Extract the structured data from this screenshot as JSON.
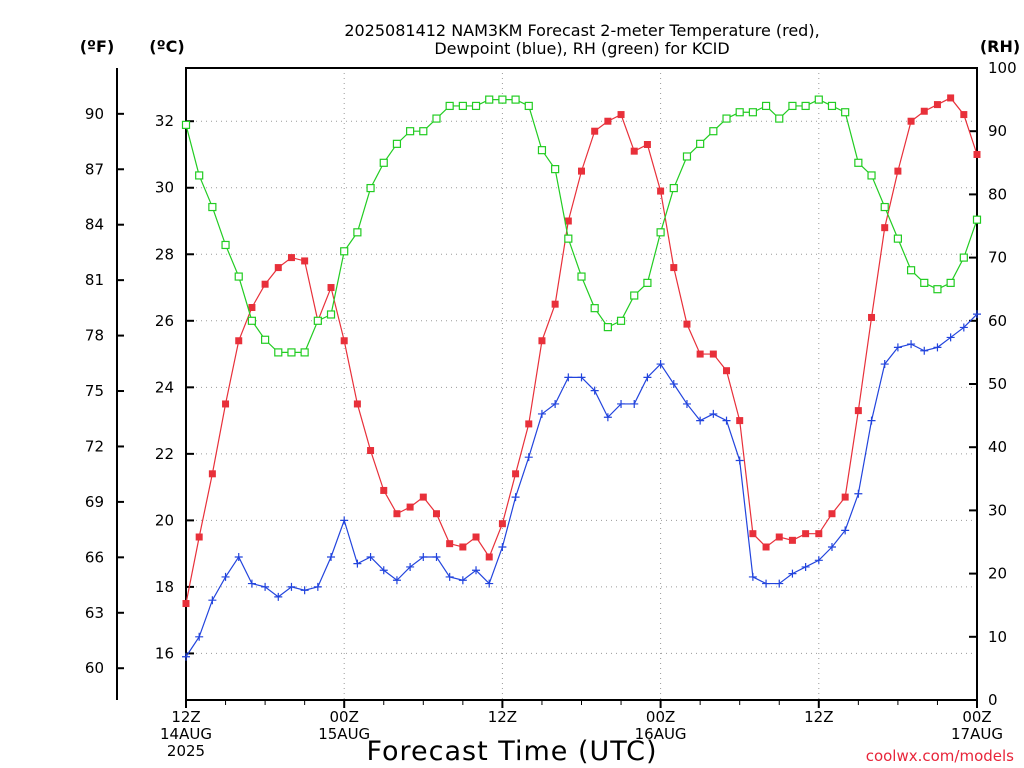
{
  "chart_data": {
    "type": "line",
    "title": [
      "2025081412 NAM3KM Forecast 2-meter Temperature (red),",
      "Dewpoint (blue), RH (green) for KCID"
    ],
    "xlabel": "Forecast Time (UTC)",
    "credit": "coolwx.com/models",
    "axis_units": {
      "fahrenheit": "(ºF)",
      "celsius": "(ºC)",
      "rh": "(RH)"
    },
    "x_hours": {
      "start": 0,
      "end": 60,
      "step": 1
    },
    "x_ticks": [
      {
        "hour": 0,
        "lines": [
          "12Z",
          "14AUG",
          "2025"
        ]
      },
      {
        "hour": 12,
        "lines": [
          "00Z",
          "15AUG"
        ]
      },
      {
        "hour": 24,
        "lines": [
          "12Z"
        ]
      },
      {
        "hour": 36,
        "lines": [
          "00Z",
          "16AUG"
        ]
      },
      {
        "hour": 48,
        "lines": [
          "12Z"
        ]
      },
      {
        "hour": 60,
        "lines": [
          "00Z",
          "17AUG"
        ]
      }
    ],
    "y_celsius": {
      "range": [
        14.6,
        33.6
      ],
      "ticks": [
        16,
        18,
        20,
        22,
        24,
        26,
        28,
        30,
        32
      ]
    },
    "y_fahrenheit": {
      "ticks": [
        60,
        63,
        66,
        69,
        72,
        75,
        78,
        81,
        84,
        87,
        90
      ]
    },
    "y_rh": {
      "range": [
        0,
        100
      ],
      "ticks": [
        0,
        10,
        20,
        30,
        40,
        50,
        60,
        70,
        80,
        90,
        100
      ]
    },
    "grid": true,
    "series": [
      {
        "name": "Temperature (red)",
        "axis": "celsius",
        "color": "#e8303a",
        "marker": "filled-square",
        "values": [
          17.5,
          19.5,
          21.4,
          23.5,
          25.4,
          26.4,
          27.1,
          27.6,
          27.9,
          27.8,
          26.0,
          27.0,
          25.4,
          23.5,
          22.1,
          20.9,
          20.2,
          20.4,
          20.7,
          20.2,
          19.3,
          19.2,
          19.5,
          18.9,
          19.9,
          21.4,
          22.9,
          25.4,
          26.5,
          29.0,
          30.5,
          31.7,
          32.0,
          32.2,
          31.1,
          31.3,
          29.9,
          27.6,
          25.9,
          25.0,
          25.0,
          24.5,
          23.0,
          19.6,
          19.2,
          19.5,
          19.4,
          19.6,
          19.6,
          20.2,
          20.7,
          23.3,
          26.1,
          28.8,
          30.5,
          32.0,
          32.3,
          32.5,
          32.7,
          32.2,
          31.0
        ]
      },
      {
        "name": "Dewpoint (blue)",
        "axis": "celsius",
        "color": "#2244dd",
        "marker": "plus",
        "values": [
          15.9,
          16.5,
          17.6,
          18.3,
          18.9,
          18.1,
          18.0,
          17.7,
          18.0,
          17.9,
          18.0,
          18.9,
          20.0,
          18.7,
          18.9,
          18.5,
          18.2,
          18.6,
          18.9,
          18.9,
          18.3,
          18.2,
          18.5,
          18.1,
          19.2,
          20.7,
          21.9,
          23.2,
          23.5,
          24.3,
          24.3,
          23.9,
          23.1,
          23.5,
          23.5,
          24.3,
          24.7,
          24.1,
          23.5,
          23.0,
          23.2,
          23.0,
          21.8,
          18.3,
          18.1,
          18.1,
          18.4,
          18.6,
          18.8,
          19.2,
          19.7,
          20.8,
          23.0,
          24.7,
          25.2,
          25.3,
          25.1,
          25.2,
          25.5,
          25.8,
          26.2
        ]
      },
      {
        "name": "RH (green)",
        "axis": "rh",
        "color": "#22cc22",
        "marker": "open-square",
        "values": [
          91,
          83,
          78,
          72,
          67,
          60,
          57,
          55,
          55,
          55,
          60,
          61,
          71,
          74,
          81,
          85,
          88,
          90,
          90,
          92,
          94,
          94,
          94,
          95,
          95,
          95,
          94,
          87,
          84,
          73,
          67,
          62,
          59,
          60,
          64,
          66,
          74,
          81,
          86,
          88,
          90,
          92,
          93,
          93,
          94,
          92,
          94,
          94,
          95,
          94,
          93,
          85,
          83,
          78,
          73,
          68,
          66,
          65,
          66,
          70,
          76
        ]
      }
    ]
  }
}
